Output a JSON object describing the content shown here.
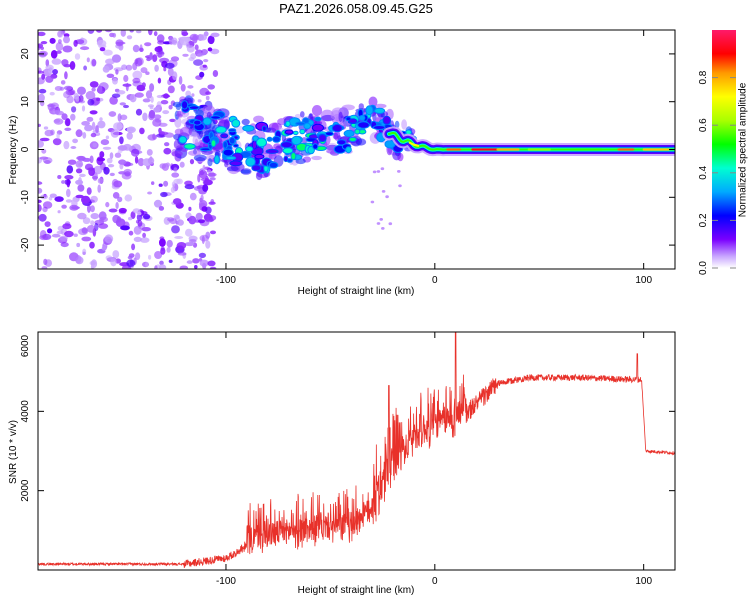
{
  "figure_title": "PAZ1.2026.058.09.45.G25",
  "colors": {
    "background": "#ffffff",
    "snr_line": "#e8312a",
    "axis": "#000000"
  },
  "chart_data": [
    {
      "type": "heatmap",
      "title": "PAZ1.2026.058.09.45.G25",
      "xlabel": "Height of straight line (km)",
      "ylabel": "Frequency (Hz)",
      "xlim": [
        -190,
        115
      ],
      "ylim": [
        -25,
        25
      ],
      "xticks": [
        -100,
        0,
        100
      ],
      "xtick_labels": [
        "-100",
        "0",
        "100"
      ],
      "yticks": [
        -20,
        -10,
        0,
        10,
        20
      ],
      "ytick_labels": [
        "-20",
        "-10",
        "0",
        "10",
        "20"
      ],
      "colorbar": {
        "label": "Normalized spectral amplitude",
        "range": [
          0,
          1
        ],
        "ticks": [
          0.0,
          0.2,
          0.4,
          0.6,
          0.8
        ],
        "tick_labels": [
          "0.0",
          "0.2",
          "0.4",
          "0.6",
          "0.8"
        ]
      },
      "ridge": [
        {
          "h": -120,
          "f": 5
        },
        {
          "h": -100,
          "f": 2
        },
        {
          "h": -80,
          "f": 0
        },
        {
          "h": -60,
          "f": 3
        },
        {
          "h": -40,
          "f": 4
        },
        {
          "h": -30,
          "f": 7
        },
        {
          "h": -20,
          "f": 3
        },
        {
          "h": -10,
          "f": 1
        },
        {
          "h": 0,
          "f": 0
        },
        {
          "h": 20,
          "f": 0
        },
        {
          "h": 60,
          "f": 0
        },
        {
          "h": 115,
          "f": 0
        }
      ],
      "noise_region": {
        "h_min": -190,
        "h_max": -105,
        "f_min": -25,
        "f_max": 25
      }
    },
    {
      "type": "line",
      "title": "",
      "xlabel": "Height of straight line (km)",
      "ylabel": "SNR (10 * v/v)",
      "xlim": [
        -190,
        115
      ],
      "ylim": [
        0,
        6000
      ],
      "xticks": [
        -100,
        0,
        100
      ],
      "xtick_labels": [
        "-100",
        "0",
        "100"
      ],
      "yticks": [
        2000,
        4000,
        6000
      ],
      "ytick_labels": [
        "2000",
        "4000",
        "6000"
      ],
      "series": [
        {
          "name": "SNR",
          "envelope": [
            {
              "h": -190,
              "v": 150
            },
            {
              "h": -120,
              "v": 150
            },
            {
              "h": -100,
              "v": 300
            },
            {
              "h": -85,
              "v": 700
            },
            {
              "h": -60,
              "v": 900
            },
            {
              "h": -40,
              "v": 1000
            },
            {
              "h": -30,
              "v": 1400
            },
            {
              "h": -22,
              "v": 2300
            },
            {
              "h": -15,
              "v": 2800
            },
            {
              "h": -10,
              "v": 3200
            },
            {
              "h": 0,
              "v": 3500
            },
            {
              "h": 10,
              "v": 3700
            },
            {
              "h": 20,
              "v": 4200
            },
            {
              "h": 30,
              "v": 4700
            },
            {
              "h": 45,
              "v": 4850
            },
            {
              "h": 70,
              "v": 4850
            },
            {
              "h": 95,
              "v": 4800
            },
            {
              "h": 99,
              "v": 4800
            },
            {
              "h": 101,
              "v": 3000
            },
            {
              "h": 115,
              "v": 2950
            }
          ],
          "peaks": [
            {
              "h": -22,
              "v": 4650
            },
            {
              "h": 10,
              "v": 6000
            },
            {
              "h": 97,
              "v": 5450
            }
          ]
        }
      ]
    }
  ]
}
